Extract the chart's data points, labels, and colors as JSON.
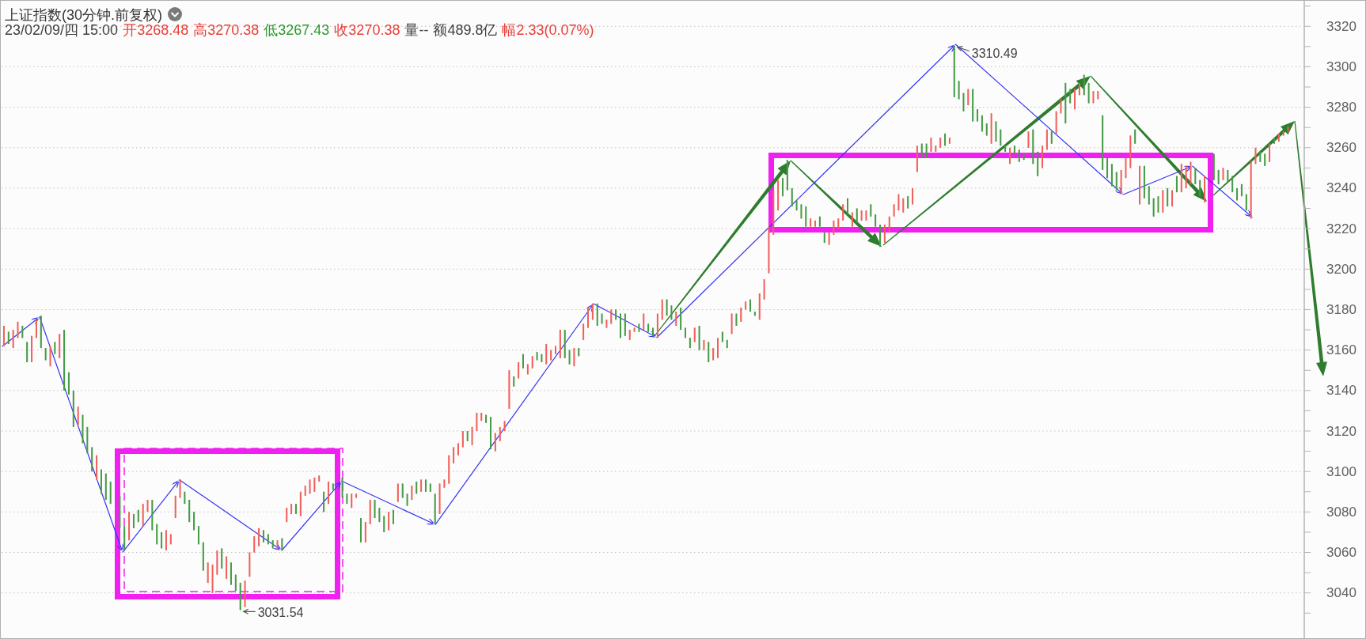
{
  "chart_data": {
    "type": "candlestick",
    "title": "上证指数(30分钟.前复权)",
    "annotations": [
      "23/02/09/四 15:00",
      "开3268.48",
      "高3270.38",
      "低3267.43",
      "收3270.38",
      "量--",
      "额489.8亿",
      "幅2.33(0.07%)",
      "3310.49",
      "3031.54"
    ],
    "categories": [
      null,
      null,
      null,
      null,
      null,
      null,
      null,
      null,
      null,
      null,
      null,
      null,
      null,
      null,
      null,
      null,
      null,
      null,
      null,
      null,
      null,
      null,
      null,
      null,
      null,
      null,
      null,
      null,
      null,
      null,
      null,
      null,
      null,
      null,
      null,
      null,
      null,
      null,
      null,
      null,
      null,
      null,
      null,
      null,
      null,
      null,
      null,
      null,
      null,
      null,
      null,
      null,
      null,
      null,
      null,
      null,
      null,
      null,
      null,
      null,
      null,
      null,
      null,
      null,
      null,
      null,
      null,
      null,
      null,
      null,
      null,
      null,
      null,
      null,
      null,
      null,
      null,
      null,
      null,
      null,
      null,
      null,
      null,
      null,
      null,
      null,
      null,
      null,
      null,
      null,
      null,
      null,
      null,
      null,
      null,
      null,
      null,
      null,
      null,
      null,
      null,
      null,
      null,
      null,
      null,
      null,
      null,
      null,
      null,
      null,
      null,
      null,
      null,
      null,
      null,
      null,
      null,
      null,
      null,
      null,
      null,
      null,
      null,
      null,
      null,
      null,
      null,
      null,
      null,
      null,
      null,
      null,
      null,
      null,
      null,
      null,
      null,
      null,
      null,
      null,
      null,
      null,
      null,
      null,
      null,
      null,
      null,
      null,
      null,
      null,
      null,
      null,
      null,
      null,
      null,
      null,
      null,
      null,
      null,
      null,
      null,
      null,
      null,
      null,
      null,
      null,
      null,
      null,
      null,
      null,
      null,
      null,
      null,
      null,
      null,
      null,
      null,
      null,
      null,
      null,
      null,
      null,
      null,
      null,
      null,
      null,
      null,
      null,
      null,
      null,
      null,
      null,
      null,
      null,
      null,
      null,
      null,
      null,
      null,
      null,
      null,
      null,
      null,
      null,
      null,
      null,
      null,
      null,
      null,
      null,
      null,
      null,
      null,
      null,
      null,
      null,
      null,
      null,
      null,
      null,
      null,
      null,
      null,
      null,
      null,
      null,
      null,
      null,
      null,
      null,
      null,
      null,
      null,
      null,
      null,
      null,
      null,
      null,
      null,
      null,
      null,
      null,
      null,
      null,
      null,
      null,
      null,
      null,
      null,
      null,
      null,
      null,
      null,
      null,
      null,
      null,
      null,
      null,
      null,
      null,
      null,
      null,
      null,
      null,
      null,
      null,
      null,
      null,
      null,
      null,
      null,
      null,
      null,
      null,
      null,
      null,
      null,
      null,
      null,
      null,
      null
    ],
    "ohlc": [
      [
        3162,
        3172,
        3162,
        3172
      ],
      [
        3169,
        3169,
        3163,
        3163
      ],
      [
        3161,
        3170,
        3161,
        3170
      ],
      [
        3166,
        3174,
        3166,
        3174
      ],
      [
        3172,
        3172,
        3166,
        3166
      ],
      [
        3164,
        3164,
        3154,
        3154
      ],
      [
        3154,
        3167,
        3154,
        3167
      ],
      [
        3166,
        3175,
        3166,
        3175
      ],
      [
        3177,
        3177,
        3161,
        3161
      ],
      [
        3161,
        3161,
        3155,
        3155
      ],
      [
        3152,
        3162,
        3152,
        3162
      ],
      [
        3164,
        3164,
        3158,
        3158
      ],
      [
        3156,
        3168,
        3156,
        3168
      ],
      [
        3170,
        3170,
        3140,
        3140
      ],
      [
        3149,
        3149,
        3138,
        3138
      ],
      [
        3140,
        3140,
        3122,
        3122
      ],
      [
        3123,
        3132,
        3123,
        3132
      ],
      [
        3128,
        3128,
        3114,
        3114
      ],
      [
        3122,
        3122,
        3109,
        3109
      ],
      [
        3112,
        3112,
        3100,
        3100
      ],
      [
        3096,
        3108,
        3096,
        3108
      ],
      [
        3101,
        3101,
        3089,
        3089
      ],
      [
        3099,
        3099,
        3086,
        3086
      ],
      [
        3095,
        3095,
        3084,
        3084
      ],
      null,
      [
        3088,
        3088,
        3072,
        3072
      ],
      [
        3073,
        3073,
        3061,
        3061
      ],
      [
        3066,
        3080,
        3066,
        3080
      ],
      [
        3079,
        3079,
        3072,
        3072
      ],
      [
        3081,
        3081,
        3075,
        3075
      ],
      [
        3073,
        3084,
        3073,
        3084
      ],
      [
        3080,
        3086,
        3080,
        3086
      ],
      [
        3086,
        3086,
        3071,
        3071
      ],
      [
        3074,
        3074,
        3064,
        3064
      ],
      [
        3070,
        3070,
        3062,
        3062
      ],
      [
        3061,
        3071,
        3061,
        3071
      ],
      [
        3064,
        3069,
        3064,
        3069
      ],
      [
        3077,
        3088,
        3077,
        3088
      ],
      [
        3087,
        3096,
        3087,
        3096
      ],
      [
        3090,
        3090,
        3084,
        3084
      ],
      [
        3086,
        3086,
        3075,
        3075
      ],
      [
        3080,
        3080,
        3071,
        3071
      ],
      [
        3073,
        3073,
        3064,
        3064
      ],
      [
        3065,
        3065,
        3051,
        3051
      ],
      [
        3045,
        3055,
        3045,
        3055
      ],
      [
        3040,
        3054,
        3040,
        3054
      ],
      [
        3049,
        3061,
        3049,
        3061
      ],
      [
        3062,
        3062,
        3052,
        3052
      ],
      [
        3047,
        3058,
        3047,
        3058
      ],
      [
        3055,
        3055,
        3044,
        3044
      ],
      [
        3049,
        3049,
        3041,
        3041
      ],
      [
        3045,
        3045,
        3031.54,
        3031.54
      ],
      [
        3033,
        3046,
        3033,
        3046
      ],
      [
        3048,
        3060,
        3048,
        3060
      ],
      [
        3060,
        3068,
        3060,
        3068
      ],
      [
        3063,
        3072,
        3063,
        3072
      ],
      [
        3071,
        3071,
        3065,
        3065
      ],
      [
        3069,
        3069,
        3064,
        3064
      ],
      [
        3066,
        3066,
        3062,
        3062
      ],
      [
        3062,
        3066,
        3062,
        3066
      ],
      [
        3067,
        3067,
        3061,
        3061
      ],
      [
        3075,
        3082,
        3075,
        3082
      ],
      [
        3079,
        3084,
        3079,
        3084
      ],
      [
        3084,
        3084,
        3079,
        3079
      ],
      [
        3078,
        3090,
        3078,
        3090
      ],
      [
        3088,
        3093,
        3088,
        3093
      ],
      [
        3089,
        3096,
        3089,
        3096
      ],
      [
        3090,
        3097,
        3090,
        3097
      ],
      [
        3095,
        3098,
        3095,
        3098
      ],
      [
        3090,
        3090,
        3080,
        3080
      ],
      [
        3084,
        3095,
        3084,
        3095
      ],
      [
        3094,
        3094,
        3091,
        3091
      ],
      null,
      [
        3097,
        3097,
        3087,
        3087
      ],
      [
        3089,
        3089,
        3084,
        3084
      ],
      [
        3082,
        3089,
        3082,
        3089
      ],
      [
        3087,
        3089,
        3087,
        3089
      ],
      [
        3077,
        3077,
        3065,
        3065
      ],
      [
        3065,
        3075,
        3065,
        3075
      ],
      [
        3074,
        3086,
        3074,
        3086
      ],
      [
        3086,
        3086,
        3077,
        3077
      ],
      [
        3082,
        3082,
        3075,
        3075
      ],
      [
        3078,
        3078,
        3070,
        3070
      ],
      [
        3071,
        3080,
        3071,
        3080
      ],
      [
        3081,
        3081,
        3074,
        3074
      ],
      [
        3085,
        3094,
        3085,
        3094
      ],
      [
        3094,
        3094,
        3087,
        3087
      ],
      [
        3089,
        3089,
        3083,
        3083
      ],
      [
        3086,
        3093,
        3086,
        3093
      ],
      [
        3095,
        3095,
        3089,
        3089
      ],
      [
        3090,
        3096,
        3090,
        3096
      ],
      [
        3096,
        3096,
        3090,
        3090
      ],
      [
        3094,
        3094,
        3090,
        3090
      ],
      [
        3089,
        3089,
        3074,
        3074
      ],
      [
        3079,
        3094,
        3079,
        3094
      ],
      [
        3092,
        3096,
        3092,
        3096
      ],
      [
        3094,
        3108,
        3094,
        3108
      ],
      [
        3104,
        3112,
        3104,
        3112
      ],
      [
        3108,
        3114,
        3108,
        3114
      ],
      [
        3112,
        3120,
        3112,
        3120
      ],
      [
        3120,
        3120,
        3115,
        3115
      ],
      [
        3113,
        3122,
        3113,
        3122
      ],
      [
        3120,
        3129,
        3120,
        3129
      ],
      [
        3125,
        3129,
        3125,
        3129
      ],
      [
        3128,
        3128,
        3124,
        3124
      ],
      [
        3127,
        3127,
        3111,
        3111
      ],
      [
        3110,
        3119,
        3110,
        3119
      ],
      [
        3115,
        3122,
        3115,
        3122
      ],
      [
        3120,
        3125,
        3120,
        3125
      ],
      [
        3131,
        3150,
        3131,
        3150
      ],
      [
        3147,
        3147,
        3142,
        3142
      ],
      [
        3146,
        3154,
        3146,
        3154
      ],
      [
        3158,
        3158,
        3151,
        3151
      ],
      [
        3148,
        3153,
        3148,
        3153
      ],
      [
        3151,
        3157,
        3151,
        3157
      ],
      [
        3159,
        3159,
        3155,
        3155
      ],
      [
        3158,
        3158,
        3154,
        3154
      ],
      [
        3153,
        3163,
        3153,
        3163
      ],
      [
        3155,
        3160,
        3155,
        3160
      ],
      [
        3158,
        3162,
        3158,
        3162
      ],
      [
        3156,
        3170,
        3156,
        3170
      ],
      [
        3170,
        3170,
        3156,
        3156
      ],
      [
        3160,
        3160,
        3153,
        3153
      ],
      [
        3152,
        3161,
        3152,
        3161
      ],
      [
        3161,
        3161,
        3157,
        3157
      ],
      [
        3165,
        3173,
        3165,
        3173
      ],
      [
        3171,
        3181,
        3171,
        3181
      ],
      [
        3175,
        3183,
        3175,
        3183
      ],
      [
        3183,
        3183,
        3172,
        3172
      ],
      [
        3178,
        3178,
        3173,
        3173
      ],
      [
        3171,
        3175,
        3171,
        3175
      ],
      [
        3173,
        3180,
        3173,
        3180
      ],
      [
        3180,
        3180,
        3175,
        3175
      ],
      [
        3178,
        3178,
        3166,
        3166
      ],
      [
        3178,
        3178,
        3167,
        3167
      ],
      [
        3165,
        3170,
        3165,
        3170
      ],
      [
        3169,
        3171,
        3169,
        3171
      ],
      [
        3173,
        3173,
        3169,
        3169
      ],
      [
        3170,
        3178,
        3170,
        3178
      ],
      [
        3173,
        3173,
        3169,
        3169
      ],
      [
        3171,
        3171,
        3167,
        3167
      ],
      [
        3166,
        3178,
        3166,
        3178
      ],
      [
        3175,
        3185,
        3175,
        3185
      ],
      [
        3185,
        3185,
        3177,
        3177
      ],
      [
        3182,
        3182,
        3175,
        3175
      ],
      [
        3172,
        3179,
        3172,
        3179
      ],
      [
        3181,
        3181,
        3170,
        3170
      ],
      [
        3171,
        3171,
        3166,
        3166
      ],
      [
        3166,
        3166,
        3161,
        3161
      ],
      [
        3164,
        3171,
        3164,
        3171
      ],
      [
        3172,
        3172,
        3160,
        3160
      ],
      [
        3160,
        3165,
        3160,
        3165
      ],
      [
        3164,
        3164,
        3154,
        3154
      ],
      [
        3155,
        3161,
        3155,
        3161
      ],
      [
        3156,
        3166,
        3156,
        3166
      ],
      [
        3169,
        3169,
        3164,
        3164
      ],
      [
        3165,
        3165,
        3161,
        3161
      ],
      [
        3168,
        3178,
        3168,
        3178
      ],
      [
        3178,
        3178,
        3172,
        3172
      ],
      [
        3174,
        3181,
        3174,
        3181
      ],
      [
        3180,
        3184,
        3180,
        3184
      ],
      [
        3185,
        3185,
        3179,
        3179
      ],
      [
        3179,
        3179,
        3177,
        3177
      ],
      [
        3175,
        3188,
        3175,
        3188
      ],
      [
        3185,
        3195,
        3185,
        3195
      ],
      [
        3198,
        3221,
        3198,
        3221
      ],
      [
        3217,
        3239,
        3217,
        3239
      ],
      [
        3229,
        3244,
        3229,
        3244
      ],
      [
        3245,
        3245,
        3236,
        3236
      ],
      [
        3254,
        3254,
        3239,
        3239
      ],
      [
        3240,
        3240,
        3231,
        3231
      ],
      [
        3234,
        3234,
        3229,
        3229
      ],
      [
        3232,
        3232,
        3225,
        3225
      ],
      [
        3231,
        3231,
        3221,
        3221
      ],
      [
        3221,
        3225,
        3221,
        3225
      ],
      [
        3221,
        3224,
        3221,
        3224
      ],
      [
        3226,
        3226,
        3221,
        3221
      ],
      [
        3218,
        3218,
        3213,
        3213
      ],
      [
        3212,
        3218,
        3212,
        3218
      ],
      [
        3217,
        3224,
        3217,
        3224
      ],
      [
        3220,
        3225,
        3220,
        3225
      ],
      [
        3224,
        3232,
        3224,
        3232
      ],
      [
        3235,
        3235,
        3227,
        3227
      ],
      [
        3221,
        3228,
        3221,
        3228
      ],
      [
        3230,
        3230,
        3223,
        3223
      ],
      [
        3224,
        3229,
        3224,
        3229
      ],
      [
        3224,
        3229,
        3224,
        3229
      ],
      [
        3232,
        3232,
        3226,
        3226
      ],
      [
        3227,
        3227,
        3221,
        3221
      ],
      [
        3222,
        3222,
        3211,
        3211
      ],
      [
        3213,
        3222,
        3213,
        3222
      ],
      [
        3218,
        3226,
        3218,
        3226
      ],
      [
        3226,
        3232,
        3226,
        3232
      ],
      [
        3229,
        3237,
        3229,
        3237
      ],
      [
        3228,
        3235,
        3228,
        3235
      ],
      [
        3236,
        3236,
        3230,
        3230
      ],
      [
        3232,
        3240,
        3232,
        3240
      ],
      [
        3248,
        3261,
        3248,
        3261
      ],
      [
        3262,
        3262,
        3255,
        3255
      ],
      [
        3262,
        3262,
        3255,
        3255
      ],
      [
        3258,
        3265,
        3258,
        3265
      ],
      [
        3258,
        3261,
        3258,
        3261
      ],
      [
        3260,
        3265,
        3260,
        3265
      ],
      [
        3267,
        3267,
        3261,
        3261
      ],
      [
        3262,
        3265,
        3262,
        3265
      ],
      [
        3310.49,
        3310.49,
        3285,
        3285
      ],
      [
        3293,
        3293,
        3284,
        3284
      ],
      [
        3287,
        3287,
        3278,
        3278
      ],
      [
        3281,
        3289,
        3281,
        3289
      ],
      [
        3289,
        3289,
        3273,
        3273
      ],
      [
        3279,
        3279,
        3273,
        3273
      ],
      [
        3276,
        3276,
        3268,
        3268
      ],
      [
        3272,
        3272,
        3266,
        3266
      ],
      [
        3262,
        3277,
        3262,
        3277
      ],
      [
        3273,
        3273,
        3263,
        3263
      ],
      [
        3269,
        3269,
        3261,
        3261
      ],
      [
        3261,
        3261,
        3258,
        3258
      ],
      [
        3252,
        3260,
        3252,
        3260
      ],
      [
        3261,
        3261,
        3257,
        3257
      ],
      [
        3259,
        3259,
        3253,
        3253
      ],
      [
        3257,
        3257,
        3254,
        3254
      ],
      [
        3260,
        3268,
        3260,
        3268
      ],
      [
        3269,
        3269,
        3252,
        3252
      ],
      [
        3258,
        3258,
        3246,
        3246
      ],
      [
        3250,
        3261,
        3250,
        3261
      ],
      [
        3259,
        3269,
        3259,
        3269
      ],
      [
        3268,
        3268,
        3262,
        3262
      ],
      [
        3267,
        3278,
        3267,
        3278
      ],
      [
        3277,
        3284,
        3277,
        3284
      ],
      [
        3292,
        3292,
        3272,
        3272
      ],
      [
        3289,
        3289,
        3282,
        3282
      ],
      [
        3279,
        3289,
        3279,
        3289
      ],
      [
        3286,
        3292,
        3286,
        3292
      ],
      [
        3296,
        3296,
        3286,
        3286
      ],
      [
        3292,
        3292,
        3282,
        3282
      ],
      [
        3282,
        3288,
        3282,
        3288
      ],
      [
        3284,
        3288,
        3284,
        3288
      ],
      [
        3276,
        3276,
        3249,
        3249
      ],
      [
        3255,
        3255,
        3245,
        3245
      ],
      [
        3252,
        3252,
        3241,
        3241
      ],
      [
        3248,
        3248,
        3239,
        3239
      ],
      [
        3237,
        3249,
        3237,
        3249
      ],
      [
        3245,
        3255,
        3245,
        3255
      ],
      [
        3250,
        3266,
        3250,
        3266
      ],
      [
        3269,
        3269,
        3262,
        3262
      ],
      [
        3232,
        3251,
        3232,
        3251
      ],
      [
        3251,
        3251,
        3235,
        3235
      ],
      [
        3241,
        3241,
        3232,
        3232
      ],
      [
        3235,
        3235,
        3226,
        3226
      ],
      [
        3236,
        3236,
        3228,
        3228
      ],
      [
        3228,
        3239,
        3228,
        3239
      ],
      [
        3240,
        3240,
        3231,
        3231
      ],
      [
        3231,
        3239,
        3231,
        3239
      ],
      [
        3246,
        3246,
        3238,
        3238
      ],
      [
        3238,
        3252,
        3238,
        3252
      ],
      [
        3240,
        3251,
        3240,
        3251
      ],
      [
        3242,
        3253,
        3242,
        3253
      ],
      [
        3250,
        3250,
        3242,
        3242
      ],
      [
        3244,
        3244,
        3236,
        3236
      ],
      [
        3233,
        3246,
        3233,
        3246
      ],
      null,
      [
        3257,
        3257,
        3244,
        3244
      ],
      [
        3249,
        3249,
        3242,
        3242
      ],
      [
        3244,
        3250,
        3244,
        3250
      ],
      [
        3249,
        3249,
        3243,
        3243
      ],
      [
        3246,
        3246,
        3238,
        3238
      ],
      [
        3240,
        3240,
        3234,
        3234
      ],
      [
        3242,
        3242,
        3236,
        3236
      ],
      [
        3237,
        3237,
        3229,
        3229
      ],
      [
        3225,
        3253,
        3225,
        3253
      ],
      [
        3252,
        3260,
        3252,
        3260
      ],
      [
        3258,
        3258,
        3253,
        3253
      ],
      [
        3257,
        3257,
        3251,
        3251
      ],
      [
        3253,
        3262,
        3253,
        3262
      ],
      [
        3265,
        3265,
        3262,
        3262
      ],
      [
        3263,
        3267,
        3263,
        3267
      ],
      [
        3266,
        3268,
        3266,
        3268
      ],
      [
        3268.48,
        3270.38,
        3267.43,
        3270.38
      ],
      null,
      null,
      null
    ],
    "colors": [
      "#f0605a",
      "#469b46",
      "#f0605a",
      "#f0605a",
      "#469b46",
      "#469b46",
      "#f0605a",
      "#f0605a",
      "#469b46",
      "#469b46",
      "#f0605a",
      "#469b46",
      "#f0605a",
      "#469b46",
      "#469b46",
      "#469b46",
      "#f0605a",
      "#469b46",
      "#469b46",
      "#469b46",
      "#f0605a",
      "#469b46",
      "#469b46",
      "#469b46",
      null,
      "#469b46",
      "#469b46",
      "#f0605a",
      "#469b46",
      "#469b46",
      "#f0605a",
      "#f0605a",
      "#469b46",
      "#469b46",
      "#469b46",
      "#f0605a",
      "#f0605a",
      "#f0605a",
      "#f0605a",
      "#469b46",
      "#469b46",
      "#469b46",
      "#469b46",
      "#469b46",
      "#f0605a",
      "#f0605a",
      "#f0605a",
      "#469b46",
      "#f0605a",
      "#469b46",
      "#469b46",
      "#469b46",
      "#f0605a",
      "#f0605a",
      "#f0605a",
      "#f0605a",
      "#469b46",
      "#469b46",
      "#469b46",
      "#f0605a",
      "#469b46",
      "#f0605a",
      "#f0605a",
      "#469b46",
      "#f0605a",
      "#f0605a",
      "#f0605a",
      "#f0605a",
      "#f0605a",
      "#469b46",
      "#f0605a",
      "#469b46",
      null,
      "#469b46",
      "#469b46",
      "#f0605a",
      "#f0605a",
      "#469b46",
      "#f0605a",
      "#f0605a",
      "#469b46",
      "#469b46",
      "#469b46",
      "#f0605a",
      "#469b46",
      "#f0605a",
      "#469b46",
      "#469b46",
      "#f0605a",
      "#469b46",
      "#f0605a",
      "#469b46",
      "#469b46",
      "#469b46",
      "#f0605a",
      "#f0605a",
      "#f0605a",
      "#f0605a",
      "#f0605a",
      "#f0605a",
      "#469b46",
      "#f0605a",
      "#f0605a",
      "#f0605a",
      "#469b46",
      "#469b46",
      "#f0605a",
      "#f0605a",
      "#f0605a",
      "#f0605a",
      "#469b46",
      "#f0605a",
      "#469b46",
      "#f0605a",
      "#f0605a",
      "#469b46",
      "#469b46",
      "#f0605a",
      "#f0605a",
      "#f0605a",
      "#f0605a",
      "#469b46",
      "#469b46",
      "#f0605a",
      "#469b46",
      "#f0605a",
      "#f0605a",
      "#f0605a",
      "#469b46",
      "#469b46",
      "#f0605a",
      "#f0605a",
      "#469b46",
      "#469b46",
      "#469b46",
      "#f0605a",
      "#f0605a",
      "#469b46",
      "#f0605a",
      "#469b46",
      "#469b46",
      "#f0605a",
      "#f0605a",
      "#469b46",
      "#469b46",
      "#f0605a",
      "#469b46",
      "#469b46",
      "#469b46",
      "#f0605a",
      "#469b46",
      "#f0605a",
      "#469b46",
      "#f0605a",
      "#f0605a",
      "#469b46",
      "#469b46",
      "#f0605a",
      "#469b46",
      "#f0605a",
      "#f0605a",
      "#469b46",
      "#469b46",
      "#f0605a",
      "#f0605a",
      "#f0605a",
      "#f0605a",
      "#f0605a",
      "#469b46",
      "#469b46",
      "#469b46",
      "#469b46",
      "#469b46",
      "#469b46",
      "#f0605a",
      "#f0605a",
      "#469b46",
      "#469b46",
      "#f0605a",
      "#f0605a",
      "#f0605a",
      "#f0605a",
      "#469b46",
      "#f0605a",
      "#469b46",
      "#f0605a",
      "#f0605a",
      "#469b46",
      "#469b46",
      "#469b46",
      "#f0605a",
      "#f0605a",
      "#f0605a",
      "#f0605a",
      "#f0605a",
      "#469b46",
      "#f0605a",
      "#f0605a",
      "#469b46",
      "#469b46",
      "#f0605a",
      "#f0605a",
      "#f0605a",
      "#469b46",
      "#f0605a",
      "#469b46",
      "#469b46",
      "#469b46",
      "#f0605a",
      "#469b46",
      "#469b46",
      "#469b46",
      "#469b46",
      "#f0605a",
      "#469b46",
      "#469b46",
      "#469b46",
      "#f0605a",
      "#469b46",
      "#469b46",
      "#469b46",
      "#f0605a",
      "#469b46",
      "#469b46",
      "#f0605a",
      "#f0605a",
      "#469b46",
      "#f0605a",
      "#f0605a",
      "#469b46",
      "#469b46",
      "#f0605a",
      "#f0605a",
      "#469b46",
      "#469b46",
      "#f0605a",
      "#f0605a",
      "#469b46",
      "#469b46",
      "#469b46",
      "#469b46",
      "#f0605a",
      "#f0605a",
      "#f0605a",
      "#469b46",
      "#f0605a",
      "#469b46",
      "#469b46",
      "#469b46",
      "#469b46",
      "#f0605a",
      "#469b46",
      "#f0605a",
      "#469b46",
      "#f0605a",
      "#f0605a",
      "#f0605a",
      "#469b46",
      "#469b46",
      "#f0605a",
      null,
      "#469b46",
      "#469b46",
      "#f0605a",
      "#469b46",
      "#469b46",
      "#469b46",
      "#469b46",
      "#469b46",
      "#f0605a",
      "#f0605a",
      "#469b46",
      "#469b46",
      "#f0605a",
      "#469b46",
      "#f0605a",
      "#f0605a",
      "#f0605a",
      null,
      null,
      null
    ],
    "ylim": [
      3018,
      3333
    ],
    "yticks": [
      {
        "value": 3030,
        "label": null
      },
      3040,
      {
        "value": 3050,
        "label": null
      },
      3060,
      {
        "value": 3070,
        "label": null
      },
      3080,
      {
        "value": 3090,
        "label": null
      },
      3100,
      {
        "value": 3110,
        "label": null
      },
      3120,
      {
        "value": 3130,
        "label": null
      },
      3140,
      {
        "value": 3150,
        "label": null
      },
      3160,
      {
        "value": 3170,
        "label": null
      },
      3180,
      {
        "value": 3190,
        "label": null
      },
      3200,
      {
        "value": 3210,
        "label": null
      },
      3220,
      {
        "value": 3230,
        "label": null
      },
      3240,
      {
        "value": 3250,
        "label": null
      },
      3260,
      {
        "value": 3270,
        "label": null
      },
      3280,
      {
        "value": 3290,
        "label": null
      },
      3300,
      {
        "value": 3310,
        "label": null
      },
      3320,
      {
        "value": 3330,
        "label": null
      }
    ],
    "grid": "y",
    "tick_labels": "y"
  }
}
